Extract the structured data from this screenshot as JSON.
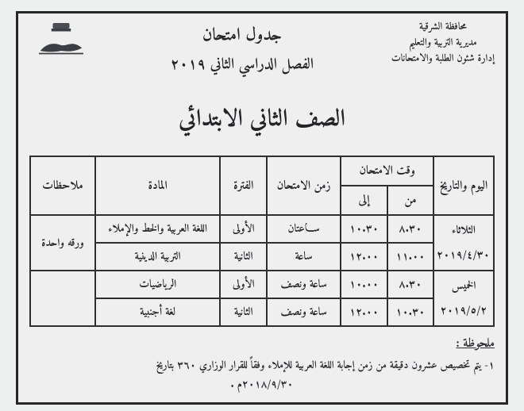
{
  "header": {
    "right_lines": [
      "محافظة الشرقية",
      "مديرية التربية والتعليم",
      "إدارة شئون الطلبة والامتحانات"
    ],
    "center_line1": "جدول امتحان",
    "center_line2": "الفصل الدراسي الثاني ٢٠١٩"
  },
  "grade_title": "الصف الثاني الابتدائي",
  "table": {
    "head": {
      "day": "اليوم والتاريخ",
      "time_group": "وقت الامتحان",
      "from": "من",
      "to": "إلى",
      "duration": "زمن الامتحان",
      "period": "الفترة",
      "subject": "المادة",
      "notes": "ملاحظات"
    },
    "blocks": [
      {
        "day_name": "الثلاثاء",
        "day_date": "٢٠١٩/٤/٣٠",
        "note": "ورقه واحدة",
        "rows": [
          {
            "from": "٨.٣٠",
            "to": "١٠.٣٠",
            "duration": "ســـاعتان",
            "period": "الأولى",
            "subject": "اللغة العربية والخط والإملاء"
          },
          {
            "from": "١١.٠٠",
            "to": "١٢.٠٠",
            "duration": "ساعة",
            "period": "الثانية",
            "subject": "التربية الدينية"
          }
        ]
      },
      {
        "day_name": "الخميس",
        "day_date": "٢٠١٩/٥/٢",
        "note": "",
        "rows": [
          {
            "from": "٨.٣٠",
            "to": "١٠.٠٠",
            "duration": "ساعة ونصف",
            "period": "الأولى",
            "subject": "الرياضيات"
          },
          {
            "from": "١٠.٣٠",
            "to": "١٢.٠٠",
            "duration": "ساعة ونصف",
            "period": "الثانية",
            "subject": "لغة أجنبية"
          }
        ]
      }
    ]
  },
  "footer": {
    "heading": "ملحوظة :",
    "line": "١- يتم تخصيص عشرون دقيقة من زمن إجابة اللغة العربية للإملاء وفقاً للقرار الوزاري ٣٦٠ بتاريخ",
    "date": "٢٠١٨/٩/٣٠م ."
  }
}
